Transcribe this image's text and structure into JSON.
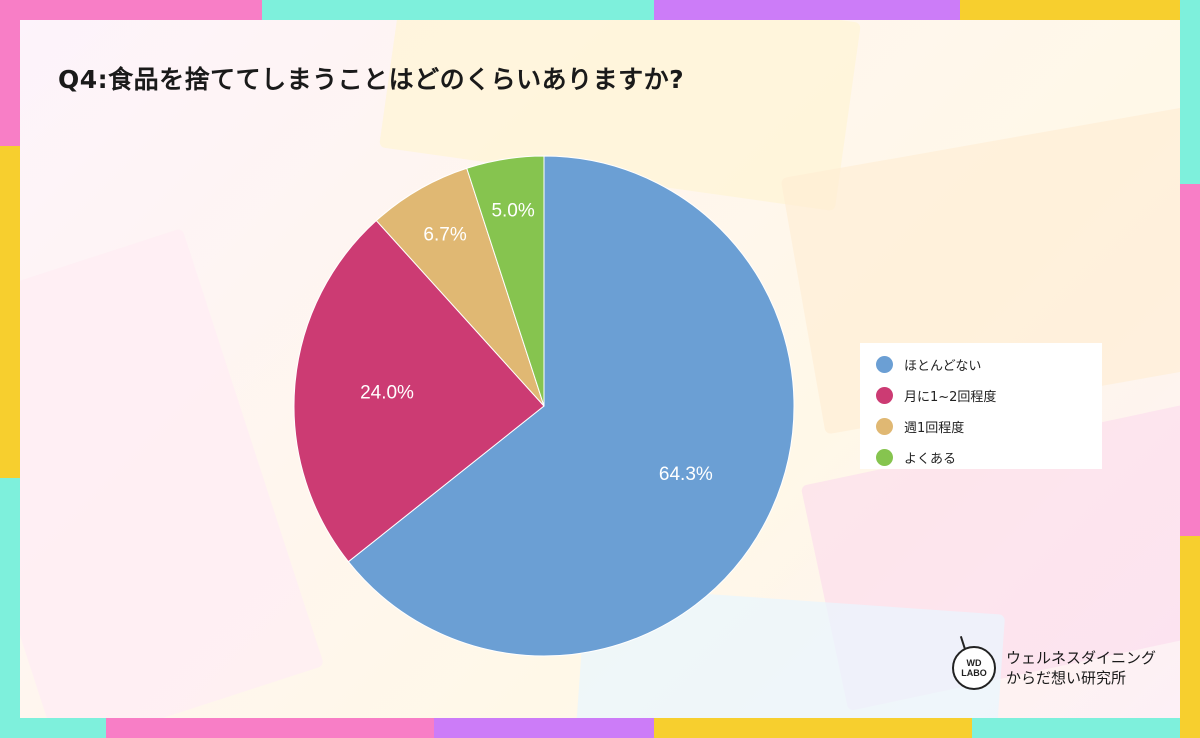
{
  "title": "Q4:食品を捨ててしまうことはどのくらいありますか?",
  "chart_data": {
    "type": "pie",
    "categories": [
      "ほとんどない",
      "月に1~2回程度",
      "週1回程度",
      "よくある"
    ],
    "values": [
      64.3,
      24.0,
      6.7,
      5.0
    ],
    "value_labels": [
      "64.3%",
      "24.0%",
      "6.7%",
      "5.0%"
    ],
    "colors": [
      "#6b9fd4",
      "#cc3b73",
      "#e0b873",
      "#86c44f"
    ],
    "start_angle_deg": 0,
    "direction": "clockwise",
    "legend_position": "right"
  },
  "brand": {
    "logo_line1": "WD",
    "logo_line2": "LABO",
    "name_line1": "ウェルネスダイニング",
    "name_line2": "からだ想い研究所"
  }
}
